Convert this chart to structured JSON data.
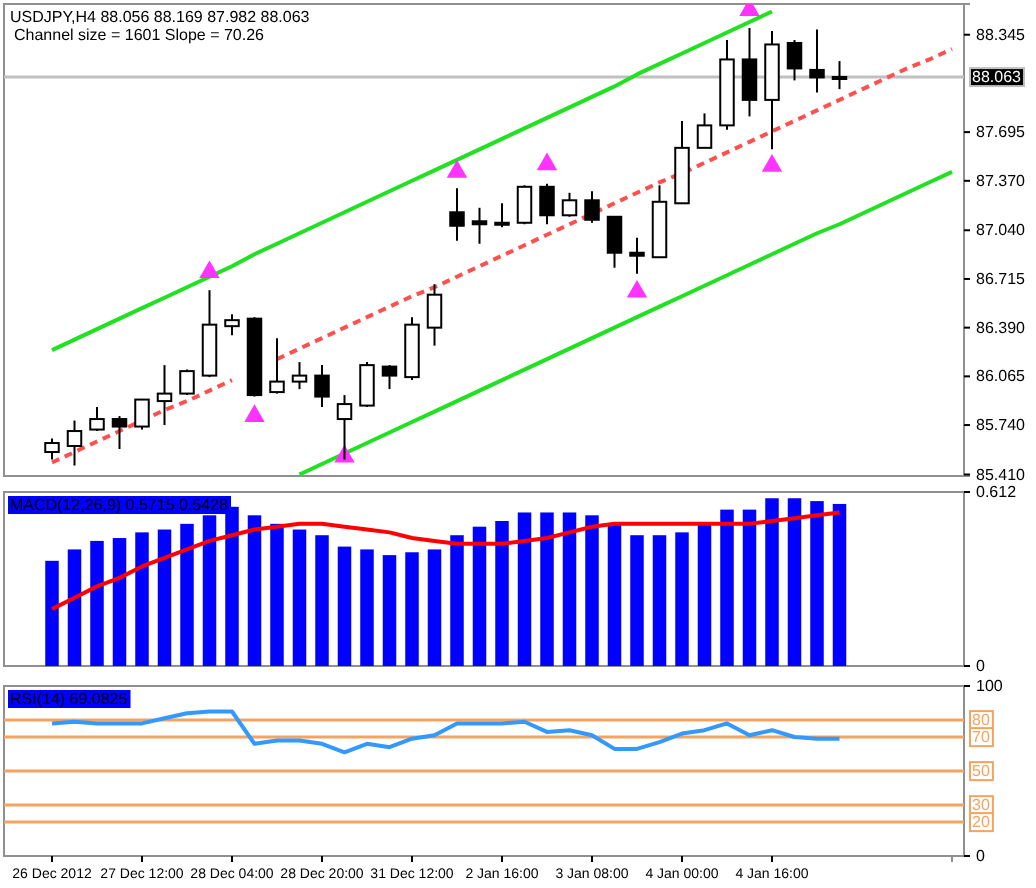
{
  "chart_data": [
    {
      "type": "candlestick",
      "title": "USDJPY,H4 88.056 88.169 87.982 88.063",
      "subtitle": "Channel size = 1601 Slope = 70.26",
      "categories": [
        null,
        null,
        null,
        null,
        null,
        null,
        null,
        null,
        null,
        null,
        null,
        null,
        null,
        null,
        null,
        null,
        null,
        null,
        null,
        null,
        null,
        null,
        null,
        null,
        null,
        null,
        null,
        null,
        null,
        null,
        null,
        null,
        null,
        null,
        null,
        null,
        null,
        null,
        null,
        null,
        null
      ],
      "ohlc": [
        [
          85.56,
          85.65,
          85.51,
          85.62
        ],
        [
          85.6,
          85.77,
          85.47,
          85.7
        ],
        [
          85.71,
          85.86,
          85.7,
          85.78
        ],
        [
          85.78,
          85.8,
          85.58,
          85.73
        ],
        [
          85.73,
          85.91,
          85.71,
          85.91
        ],
        [
          85.9,
          86.14,
          85.74,
          85.95
        ],
        [
          85.95,
          86.11,
          85.94,
          86.1
        ],
        [
          86.07,
          86.64,
          86.06,
          86.41
        ],
        [
          86.4,
          86.48,
          86.34,
          86.44
        ],
        [
          86.45,
          86.46,
          85.93,
          85.94
        ],
        [
          85.96,
          86.32,
          85.95,
          86.03
        ],
        [
          86.03,
          86.16,
          85.98,
          86.07
        ],
        [
          86.07,
          86.14,
          85.86,
          85.93
        ],
        [
          85.78,
          85.94,
          85.51,
          85.88
        ],
        [
          85.87,
          86.16,
          85.86,
          86.14
        ],
        [
          86.13,
          86.14,
          85.98,
          86.07
        ],
        [
          86.06,
          86.46,
          86.04,
          86.41
        ],
        [
          86.39,
          86.68,
          86.27,
          86.61
        ],
        [
          87.16,
          87.32,
          86.97,
          87.07
        ],
        [
          87.1,
          87.19,
          86.95,
          87.08
        ],
        [
          87.08,
          87.22,
          87.06,
          87.09
        ],
        [
          87.09,
          87.34,
          87.08,
          87.33
        ],
        [
          87.33,
          87.35,
          87.08,
          87.14
        ],
        [
          87.14,
          87.29,
          87.13,
          87.24
        ],
        [
          87.24,
          87.3,
          87.09,
          87.11
        ],
        [
          87.13,
          87.13,
          86.79,
          86.89
        ],
        [
          86.89,
          86.99,
          86.75,
          86.87
        ],
        [
          86.86,
          87.34,
          86.86,
          87.23
        ],
        [
          87.22,
          87.77,
          87.22,
          87.59
        ],
        [
          87.59,
          87.82,
          87.59,
          87.74
        ],
        [
          87.74,
          88.31,
          87.71,
          88.18
        ],
        [
          88.18,
          88.39,
          87.8,
          87.91
        ],
        [
          87.91,
          88.37,
          87.58,
          88.28
        ],
        [
          88.29,
          88.31,
          88.04,
          88.12
        ],
        [
          88.11,
          88.38,
          87.96,
          88.06
        ],
        [
          88.056,
          88.169,
          87.982,
          88.063
        ],
        null,
        null,
        null,
        null,
        null
      ],
      "series": [
        {
          "type": "line",
          "color": "#22e022",
          "values": [
            86.24,
            86.31,
            86.38,
            86.45,
            86.52,
            86.59,
            86.66,
            86.73,
            86.8,
            86.88,
            86.95,
            87.02,
            87.09,
            87.16,
            87.23,
            87.3,
            87.37,
            87.44,
            87.51,
            87.58,
            87.65,
            87.72,
            87.79,
            87.86,
            87.93,
            88.0,
            88.08,
            88.15,
            88.22,
            88.29,
            88.36,
            88.43,
            88.5,
            null,
            null,
            null,
            null,
            null,
            null,
            null,
            null
          ]
        },
        {
          "type": "line",
          "color": "#22e022",
          "values": [
            null,
            null,
            null,
            null,
            null,
            null,
            null,
            null,
            null,
            null,
            null,
            85.41,
            85.48,
            85.55,
            85.62,
            85.69,
            85.76,
            85.83,
            85.9,
            85.97,
            86.04,
            86.11,
            86.18,
            86.25,
            86.32,
            86.39,
            86.46,
            86.53,
            86.6,
            86.67,
            86.74,
            86.81,
            86.88,
            86.95,
            87.02,
            87.08,
            87.15,
            87.22,
            87.29,
            87.36,
            87.43
          ]
        },
        {
          "type": "line",
          "color": "#ff5050",
          "line_style": "dashed",
          "values": [
            85.49,
            85.56,
            85.63,
            85.7,
            85.77,
            85.84,
            85.9,
            85.97,
            86.04,
            null,
            86.18,
            86.25,
            86.32,
            86.39,
            86.46,
            86.53,
            86.6,
            86.66,
            86.73,
            86.8,
            86.87,
            86.94,
            87.01,
            87.08,
            87.15,
            87.22,
            87.29,
            87.36,
            87.42,
            87.49,
            87.56,
            87.63,
            87.7,
            87.77,
            87.84,
            87.91,
            87.98,
            88.05,
            88.12,
            88.18,
            88.25
          ]
        },
        {
          "type": "scatter",
          "color": "#ff33ff",
          "marker": "triangle",
          "values": [
            null,
            null,
            null,
            null,
            null,
            null,
            null,
            86.76,
            null,
            null,
            null,
            null,
            null,
            null,
            null,
            null,
            null,
            null,
            87.43,
            null,
            null,
            null,
            87.48,
            null,
            null,
            null,
            null,
            null,
            null,
            null,
            null,
            88.51,
            null,
            null,
            null,
            null,
            null,
            null,
            null,
            null,
            null
          ]
        },
        {
          "type": "scatter",
          "color": "#ff33ff",
          "marker": "triangle",
          "values": [
            null,
            null,
            null,
            null,
            null,
            null,
            null,
            null,
            null,
            85.8,
            null,
            null,
            null,
            85.53,
            null,
            null,
            null,
            null,
            null,
            null,
            null,
            null,
            null,
            null,
            null,
            null,
            86.63,
            null,
            null,
            null,
            null,
            null,
            87.47,
            null,
            null,
            null,
            null,
            null,
            null,
            null,
            null
          ]
        }
      ],
      "ylim": [
        85.4,
        88.55
      ],
      "yticks": [
        {
          "value": 85.41,
          "label": "85.410"
        },
        {
          "value": 85.74,
          "label": "85.740"
        },
        {
          "value": 86.065,
          "label": "86.065"
        },
        {
          "value": 86.39,
          "label": "86.390"
        },
        {
          "value": 86.715,
          "label": "86.715"
        },
        {
          "value": 87.04,
          "label": "87.040"
        },
        {
          "value": 87.37,
          "label": "87.370"
        },
        {
          "value": 87.695,
          "label": "87.695"
        },
        {
          "value": 88.345,
          "label": "88.345"
        }
      ],
      "tick_labels": "y",
      "ref_lines": [
        {
          "axis": "y",
          "value": 88.063,
          "label": "88.063",
          "color": "#c0c0c0"
        }
      ]
    },
    {
      "type": "bar",
      "title": "MACD(12,26,9) 0.5715 0.5428",
      "categories": [
        null,
        null,
        null,
        null,
        null,
        null,
        null,
        null,
        null,
        null,
        null,
        null,
        null,
        null,
        null,
        null,
        null,
        null,
        null,
        null,
        null,
        null,
        null,
        null,
        null,
        null,
        null,
        null,
        null,
        null,
        null,
        null,
        null,
        null,
        null,
        null,
        null,
        null,
        null,
        null,
        null
      ],
      "series": [
        {
          "type": "bar",
          "color": "#0000ff",
          "values": [
            0.37,
            0.41,
            0.44,
            0.45,
            0.47,
            0.48,
            0.5,
            0.53,
            0.56,
            0.53,
            0.5,
            0.48,
            0.46,
            0.42,
            0.41,
            0.39,
            0.4,
            0.41,
            0.46,
            0.49,
            0.51,
            0.54,
            0.54,
            0.54,
            0.53,
            0.5,
            0.46,
            0.46,
            0.47,
            0.5,
            0.55,
            0.55,
            0.59,
            0.59,
            0.58,
            0.57,
            null,
            null,
            null,
            null,
            null
          ]
        },
        {
          "type": "line",
          "color": "#ff0000",
          "values": [
            0.2,
            0.24,
            0.28,
            0.31,
            0.35,
            0.38,
            0.41,
            0.44,
            0.46,
            0.48,
            0.49,
            0.5,
            0.5,
            0.49,
            0.48,
            0.47,
            0.45,
            0.44,
            0.43,
            0.43,
            0.43,
            0.44,
            0.45,
            0.47,
            0.49,
            0.5,
            0.5,
            0.5,
            0.5,
            0.5,
            0.5,
            0.5,
            0.51,
            0.52,
            0.53,
            0.54,
            null,
            null,
            null,
            null,
            null
          ]
        }
      ],
      "ylim": [
        0,
        0.612
      ],
      "yticks": [
        0.612,
        0
      ],
      "tick_labels": "y"
    },
    {
      "type": "line",
      "title": "RSI(14) 69.0825",
      "categories": [
        "26 Dec 2012",
        null,
        null,
        null,
        "27 Dec 12:00",
        null,
        null,
        null,
        "28 Dec 04:00",
        null,
        null,
        null,
        "28 Dec 20:00",
        null,
        null,
        null,
        "31 Dec 12:00",
        null,
        null,
        null,
        "2 Jan 16:00",
        null,
        null,
        null,
        "3 Jan 08:00",
        null,
        null,
        null,
        "4 Jan 00:00",
        null,
        null,
        null,
        "4 Jan 16:00",
        null,
        null,
        null,
        null,
        null,
        null,
        null,
        null
      ],
      "series": [
        {
          "color": "#3399ff",
          "values": [
            78,
            79,
            78,
            78,
            78,
            81,
            84,
            85,
            85,
            66,
            68,
            68,
            66,
            61,
            66,
            64,
            69,
            71,
            78,
            78,
            78,
            79,
            73,
            74,
            71,
            63,
            63,
            67,
            72,
            74,
            78,
            71,
            74,
            70,
            69,
            69,
            null,
            null,
            null,
            null,
            null
          ]
        }
      ],
      "ylim": [
        0,
        100
      ],
      "yticks": [
        100,
        0
      ],
      "ref_lines": [
        {
          "axis": "y",
          "value": 80,
          "label": "80",
          "color": "#f4a460"
        },
        {
          "axis": "y",
          "value": 70,
          "label": "70",
          "color": "#f4a460"
        },
        {
          "axis": "y",
          "value": 50,
          "label": "50",
          "color": "#f4a460"
        },
        {
          "axis": "y",
          "value": 30,
          "label": "30",
          "color": "#f4a460"
        },
        {
          "axis": "y",
          "value": 20,
          "label": "20",
          "color": "#f4a460"
        }
      ]
    }
  ]
}
